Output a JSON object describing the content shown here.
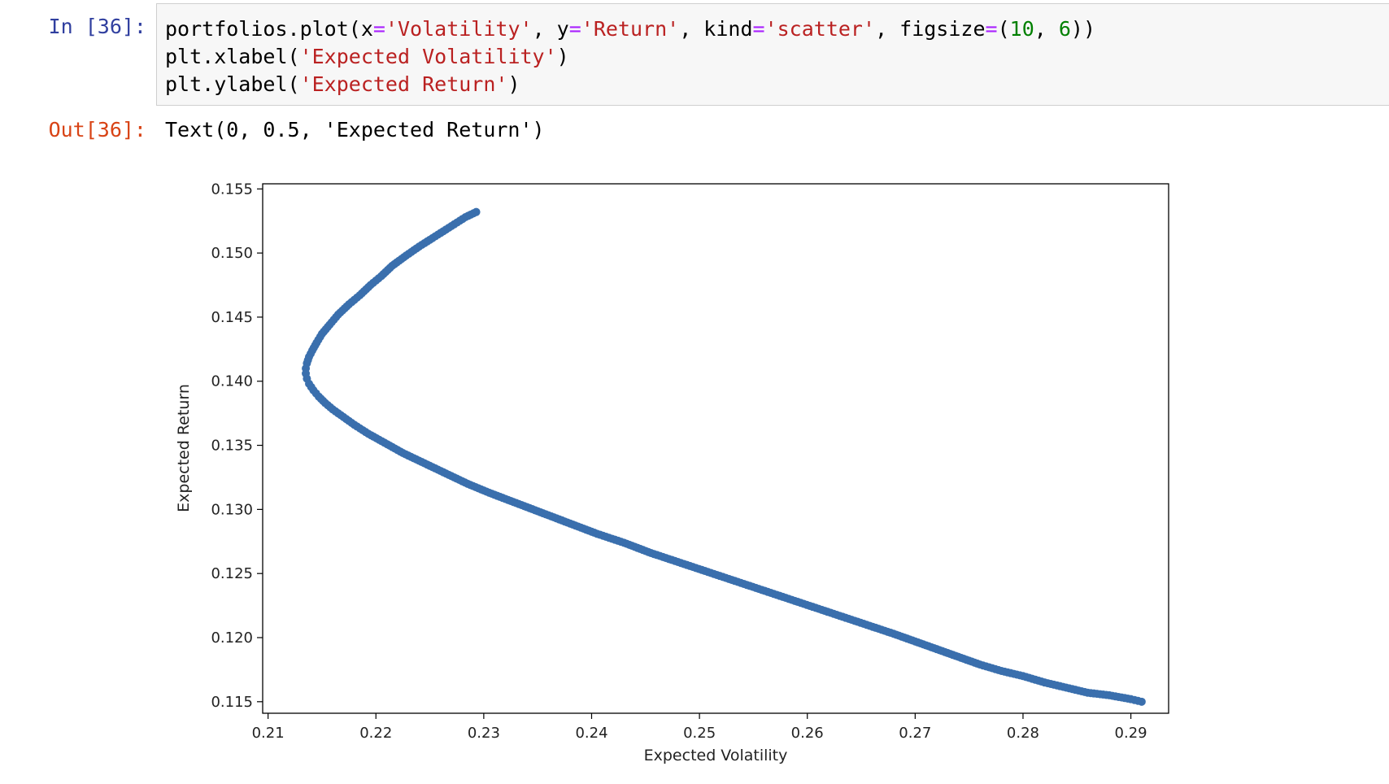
{
  "cell": {
    "in_prompt": "In [36]:",
    "out_prompt": "Out[36]:",
    "code_lines": [
      [
        {
          "t": "portfolios.plot(x",
          "c": ""
        },
        {
          "t": "=",
          "c": "op"
        },
        {
          "t": "'Volatility'",
          "c": "str"
        },
        {
          "t": ", y",
          "c": ""
        },
        {
          "t": "=",
          "c": "op"
        },
        {
          "t": "'Return'",
          "c": "str"
        },
        {
          "t": ", kind",
          "c": ""
        },
        {
          "t": "=",
          "c": "op"
        },
        {
          "t": "'scatter'",
          "c": "str"
        },
        {
          "t": ", figsize",
          "c": ""
        },
        {
          "t": "=",
          "c": "op"
        },
        {
          "t": "(",
          "c": ""
        },
        {
          "t": "10",
          "c": "num"
        },
        {
          "t": ", ",
          "c": ""
        },
        {
          "t": "6",
          "c": "num"
        },
        {
          "t": "))",
          "c": ""
        }
      ],
      [
        {
          "t": "plt.xlabel(",
          "c": ""
        },
        {
          "t": "'Expected Volatility'",
          "c": "str"
        },
        {
          "t": ")",
          "c": ""
        }
      ],
      [
        {
          "t": "plt.ylabel(",
          "c": ""
        },
        {
          "t": "'Expected Return'",
          "c": "str"
        },
        {
          "t": ")",
          "c": ""
        }
      ]
    ],
    "output_text": "Text(0, 0.5, 'Expected Return')"
  },
  "chart_data": {
    "type": "scatter",
    "xlabel": "Expected Volatility",
    "ylabel": "Expected Return",
    "xlim": [
      0.2095,
      0.2935
    ],
    "ylim": [
      0.1141,
      0.1554
    ],
    "xticks": [
      0.21,
      0.22,
      0.23,
      0.24,
      0.25,
      0.26,
      0.27,
      0.28,
      0.29
    ],
    "xtick_labels": [
      "0.21",
      "0.22",
      "0.23",
      "0.24",
      "0.25",
      "0.26",
      "0.27",
      "0.28",
      "0.29"
    ],
    "yticks": [
      0.115,
      0.12,
      0.125,
      0.13,
      0.135,
      0.14,
      0.145,
      0.15,
      0.155
    ],
    "ytick_labels": [
      "0.115",
      "0.120",
      "0.125",
      "0.130",
      "0.135",
      "0.140",
      "0.145",
      "0.150",
      "0.155"
    ],
    "grid": false,
    "marker_color": "#3a6fad",
    "series": [
      {
        "x": [
          0.2293,
          0.2283,
          0.227,
          0.2255,
          0.224,
          0.2228,
          0.2215,
          0.2205,
          0.2195,
          0.2185,
          0.2175,
          0.2165,
          0.2157,
          0.215,
          0.2145,
          0.2141,
          0.2138,
          0.2136,
          0.2135,
          0.2135,
          0.2136,
          0.2138,
          0.2142,
          0.2147,
          0.2153,
          0.216,
          0.217,
          0.218,
          0.2193,
          0.2208,
          0.2225,
          0.2245,
          0.2265,
          0.2285,
          0.2305,
          0.233,
          0.2355,
          0.238,
          0.2405,
          0.243,
          0.2455,
          0.248,
          0.2505,
          0.253,
          0.2555,
          0.258,
          0.2605,
          0.263,
          0.2655,
          0.268,
          0.27,
          0.272,
          0.274,
          0.276,
          0.278,
          0.28,
          0.282,
          0.284,
          0.286,
          0.288,
          0.29,
          0.291
        ],
        "y": [
          0.1532,
          0.1528,
          0.1521,
          0.1513,
          0.1505,
          0.1498,
          0.149,
          0.1482,
          0.1475,
          0.1467,
          0.146,
          0.1452,
          0.1444,
          0.1437,
          0.143,
          0.1424,
          0.1419,
          0.1414,
          0.141,
          0.1406,
          0.1402,
          0.1398,
          0.1393,
          0.1388,
          0.1383,
          0.1378,
          0.1372,
          0.1366,
          0.1359,
          0.1352,
          0.1344,
          0.1336,
          0.1328,
          0.132,
          0.1313,
          0.1305,
          0.1297,
          0.1289,
          0.1281,
          0.1274,
          0.1266,
          0.1259,
          0.1252,
          0.1245,
          0.1238,
          0.1231,
          0.1224,
          0.1217,
          0.121,
          0.1203,
          0.1197,
          0.1191,
          0.1185,
          0.1179,
          0.1174,
          0.117,
          0.1165,
          0.1161,
          0.1157,
          0.1155,
          0.1152,
          0.115
        ]
      }
    ]
  }
}
